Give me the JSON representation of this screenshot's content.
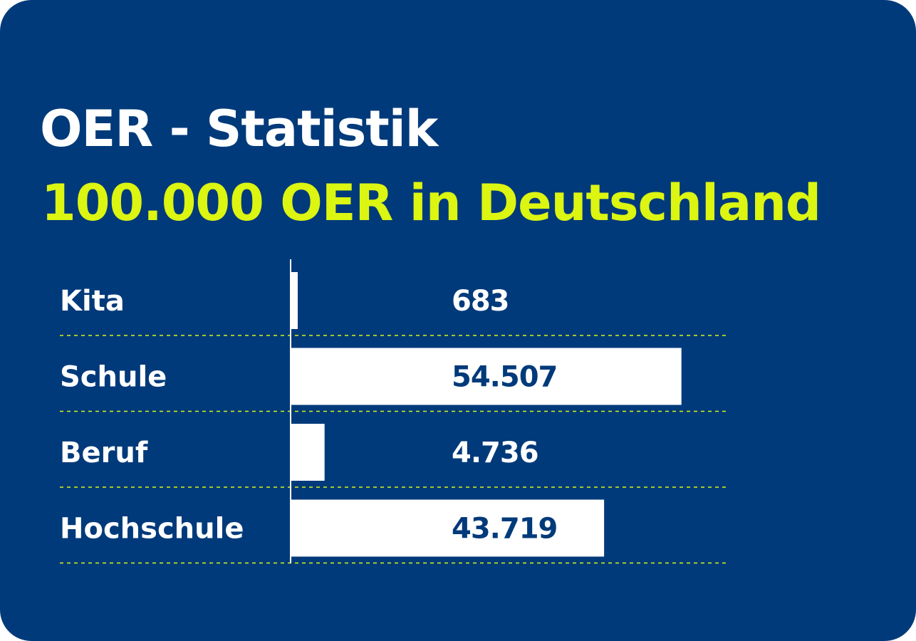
{
  "colors": {
    "background": "#003a7a",
    "title": "#ffffff",
    "subtitle": "#dcf511",
    "bar": "#ffffff",
    "label": "#ffffff",
    "value_on_bar": "#003a7a",
    "value_off_bar": "#ffffff",
    "separator": "#dcf511",
    "axis": "#ffffff"
  },
  "header": {
    "title": "OER - Statistik",
    "subtitle": "100.000 OER in Deutschland"
  },
  "chart_data": {
    "type": "bar",
    "orientation": "horizontal",
    "title": "OER - Statistik",
    "subtitle": "100.000 OER in Deutschland",
    "categories": [
      "Kita",
      "Schule",
      "Beruf",
      "Hochschule"
    ],
    "values": [
      683,
      54507,
      4736,
      43719
    ],
    "value_labels": [
      "683",
      "54.507",
      "4.736",
      "43.719"
    ],
    "xlim": [
      0,
      60000
    ],
    "grid": false,
    "legend": "none"
  }
}
